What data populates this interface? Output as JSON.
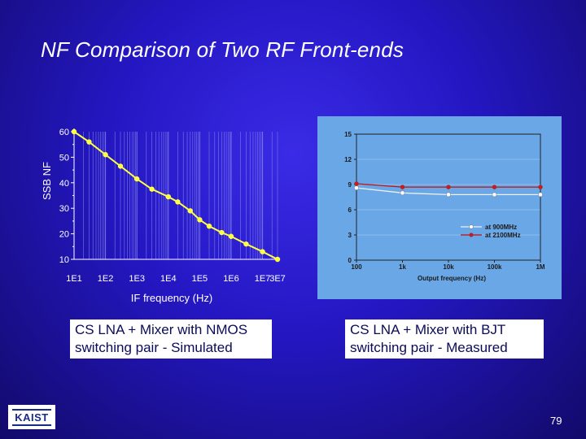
{
  "slide": {
    "title": "NF Comparison of Two RF Front-ends",
    "page_number": "79",
    "logo_text": "KAIST"
  },
  "captions": {
    "left_line1": "CS LNA + Mixer with NMOS",
    "left_line2": "switching pair - Simulated",
    "right_line1": "CS LNA + Mixer with BJT",
    "right_line2": "switching pair - Measured"
  },
  "colors": {
    "background": "#2417c2",
    "left_series": "#ffff44",
    "right_panel": "#6aa7e6",
    "series_900": "#ffffff",
    "series_2100": "#d01818"
  },
  "chart_data": [
    {
      "type": "line",
      "title": "",
      "xlabel": "IF frequency (Hz)",
      "ylabel": "SSB NF",
      "xscale": "log",
      "xlim": [
        10,
        30000000
      ],
      "ylim": [
        10,
        60
      ],
      "x_tick_labels": [
        "1E1",
        "1E2",
        "1E3",
        "1E4",
        "1E5",
        "1E6",
        "1E7",
        "3E7"
      ],
      "x_tick_values": [
        10,
        100,
        1000,
        10000,
        100000,
        1000000,
        10000000,
        30000000
      ],
      "y_tick_labels": [
        "10",
        "20",
        "30",
        "40",
        "50",
        "60"
      ],
      "y_tick_values": [
        10,
        20,
        30,
        40,
        50,
        60
      ],
      "grid": "vertical",
      "series": [
        {
          "x": [
            10,
            30,
            100,
            300,
            1000,
            3000,
            10000,
            20000,
            50000,
            100000,
            200000,
            500000,
            1000000,
            3000000,
            10000000,
            30000000
          ],
          "y": [
            60,
            56,
            51,
            46.5,
            41.5,
            37.5,
            34.5,
            32.5,
            29,
            25.5,
            23,
            20.5,
            19,
            16,
            13,
            10
          ]
        }
      ]
    },
    {
      "type": "line",
      "title": "",
      "xlabel": "Output frequency (Hz)",
      "ylabel": "",
      "xscale": "log",
      "xlim": [
        100,
        1000000
      ],
      "ylim": [
        0,
        15
      ],
      "x_tick_labels": [
        "100",
        "1k",
        "10k",
        "100k",
        "1M"
      ],
      "x_tick_values": [
        100,
        1000,
        10000,
        100000,
        1000000
      ],
      "y_tick_labels": [
        "0",
        "3",
        "6",
        "9",
        "12",
        "15"
      ],
      "y_tick_values": [
        0,
        3,
        6,
        9,
        12,
        15
      ],
      "grid": "horizontal",
      "legend_position": "lower-right",
      "series": [
        {
          "name": "at 900MHz",
          "x": [
            100,
            1000,
            10000,
            100000,
            1000000
          ],
          "y": [
            8.6,
            8.0,
            7.8,
            7.8,
            7.8
          ]
        },
        {
          "name": "at 2100MHz",
          "x": [
            100,
            1000,
            10000,
            100000,
            1000000
          ],
          "y": [
            9.1,
            8.7,
            8.7,
            8.7,
            8.7
          ]
        }
      ]
    }
  ]
}
